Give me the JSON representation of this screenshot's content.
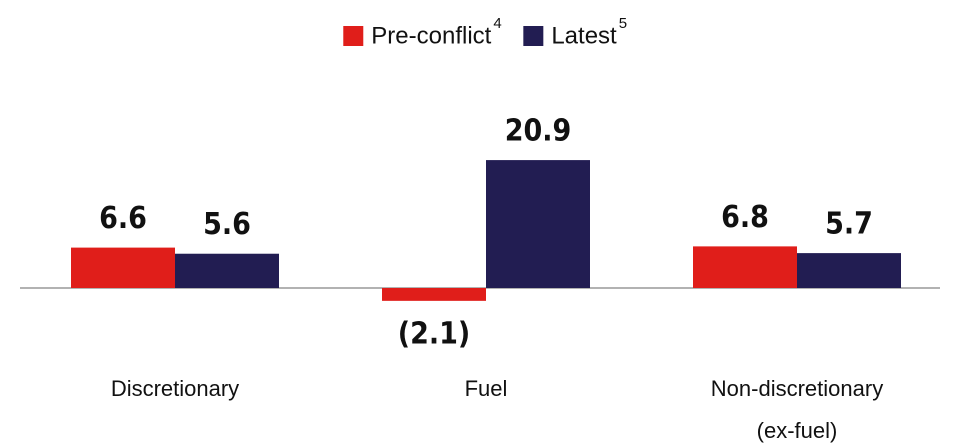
{
  "chart_data": {
    "type": "bar",
    "categories": [
      [
        "Discretionary"
      ],
      [
        "Fuel"
      ],
      [
        "Non-discretionary",
        "(ex-fuel)"
      ]
    ],
    "series": [
      {
        "name": "Pre-conflict",
        "footnote": "4",
        "color": "#e01e1a",
        "values": [
          6.6,
          -2.1,
          6.8
        ],
        "value_labels": [
          "6.6",
          "(2.1)",
          "6.8"
        ]
      },
      {
        "name": "Latest",
        "footnote": "5",
        "color": "#221d52",
        "values": [
          5.6,
          20.9,
          5.7
        ],
        "value_labels": [
          "5.6",
          "20.9",
          "5.7"
        ]
      }
    ]
  }
}
